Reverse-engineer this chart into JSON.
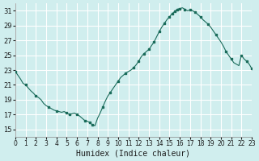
{
  "xlabel": "Humidex (Indice chaleur)",
  "ylabel": "",
  "xlim": [
    0,
    23
  ],
  "ylim": [
    14,
    32
  ],
  "yticks": [
    15,
    17,
    19,
    21,
    23,
    25,
    27,
    29,
    31
  ],
  "xticks": [
    0,
    1,
    2,
    3,
    4,
    5,
    6,
    7,
    8,
    9,
    10,
    11,
    12,
    13,
    14,
    15,
    16,
    17,
    18,
    19,
    20,
    21,
    22,
    23
  ],
  "background_color": "#d0eeee",
  "grid_color": "#ffffff",
  "line_color": "#1a6b5a",
  "marker_color": "#1a6b5a",
  "x": [
    0,
    0.25,
    0.5,
    0.75,
    1.0,
    1.25,
    1.5,
    1.75,
    2.0,
    2.25,
    2.5,
    2.75,
    3.0,
    3.25,
    3.5,
    3.75,
    4.0,
    4.25,
    4.5,
    4.75,
    5.0,
    5.25,
    5.5,
    5.75,
    6.0,
    6.25,
    6.5,
    6.75,
    7.0,
    7.25,
    7.5,
    7.75,
    8.0,
    8.25,
    8.5,
    8.75,
    9.0,
    9.25,
    9.5,
    9.75,
    10.0,
    10.25,
    10.5,
    10.75,
    11.0,
    11.25,
    11.5,
    11.75,
    12.0,
    12.25,
    12.5,
    12.75,
    13.0,
    13.25,
    13.5,
    13.75,
    14.0,
    14.25,
    14.5,
    14.75,
    15.0,
    15.25,
    15.5,
    15.75,
    16.0,
    16.25,
    16.5,
    16.75,
    17.0,
    17.25,
    17.5,
    17.75,
    18.0,
    18.25,
    18.5,
    18.75,
    19.0,
    19.25,
    19.5,
    19.75,
    20.0,
    20.25,
    20.5,
    20.75,
    21.0,
    21.25,
    21.5,
    21.75,
    22.0,
    22.25,
    22.5,
    22.75,
    23.0
  ],
  "y": [
    22.8,
    22.3,
    21.8,
    21.2,
    21.0,
    20.6,
    20.2,
    19.9,
    19.5,
    19.3,
    19.0,
    18.5,
    18.2,
    18.0,
    17.8,
    17.6,
    17.5,
    17.4,
    17.3,
    17.4,
    17.2,
    17.0,
    17.1,
    17.2,
    17.0,
    16.8,
    16.5,
    16.2,
    16.1,
    15.9,
    15.6,
    15.5,
    16.5,
    17.2,
    18.0,
    18.8,
    19.5,
    20.0,
    20.5,
    21.0,
    21.5,
    22.0,
    22.3,
    22.6,
    22.8,
    23.0,
    23.3,
    23.7,
    24.2,
    24.8,
    25.2,
    25.5,
    25.8,
    26.3,
    26.8,
    27.5,
    28.2,
    28.8,
    29.3,
    29.8,
    30.2,
    30.6,
    30.9,
    31.2,
    31.3,
    31.4,
    31.2,
    31.0,
    31.1,
    31.0,
    30.8,
    30.5,
    30.2,
    29.8,
    29.5,
    29.2,
    28.8,
    28.3,
    27.8,
    27.3,
    26.8,
    26.2,
    25.5,
    25.0,
    24.5,
    24.0,
    23.8,
    23.6,
    25.0,
    24.5,
    24.2,
    23.8,
    23.2
  ],
  "marker_x": [
    0,
    1.0,
    2.0,
    3.25,
    4.0,
    5.0,
    5.25,
    6.0,
    6.75,
    7.25,
    7.5,
    8.5,
    9.25,
    10.0,
    10.75,
    11.5,
    12.0,
    12.5,
    13.0,
    13.5,
    14.0,
    14.5,
    15.0,
    15.25,
    15.5,
    15.75,
    16.0,
    16.5,
    17.0,
    17.5,
    18.0,
    18.75,
    19.5,
    20.5,
    21.0,
    22.0,
    22.5,
    23.0
  ],
  "marker_y": [
    22.8,
    21.0,
    19.5,
    18.0,
    17.5,
    17.2,
    17.0,
    17.0,
    16.2,
    15.9,
    15.6,
    18.0,
    20.0,
    21.5,
    22.6,
    23.3,
    24.2,
    25.2,
    25.8,
    26.8,
    28.2,
    29.3,
    30.2,
    30.6,
    30.9,
    31.2,
    31.3,
    31.2,
    31.1,
    30.8,
    30.2,
    29.2,
    27.8,
    25.5,
    24.5,
    25.0,
    24.2,
    23.2
  ]
}
